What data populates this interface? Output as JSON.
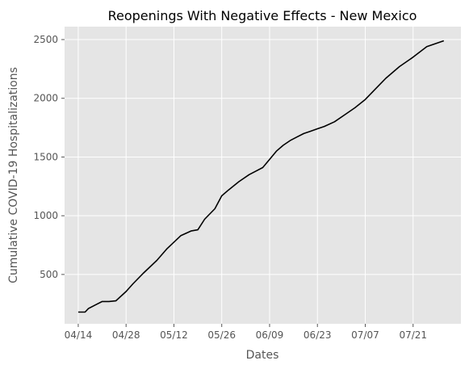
{
  "chart_data": {
    "type": "line",
    "title": "Reopenings With Negative Effects - New Mexico",
    "xlabel": "Dates",
    "ylabel": "Cumulative COVID-19 Hospitalizations",
    "grid": true,
    "background": "#E5E5E5",
    "grid_color": "#FFFFFF",
    "line_color": "#000000",
    "x_ticks": [
      "04/14",
      "04/28",
      "05/12",
      "05/26",
      "06/09",
      "06/23",
      "07/07",
      "07/21"
    ],
    "x_tick_dates": [
      "2020-04-14",
      "2020-04-28",
      "2020-05-12",
      "2020-05-26",
      "2020-06-09",
      "2020-06-23",
      "2020-07-07",
      "2020-07-21"
    ],
    "xlim": [
      "2020-04-10",
      "2020-08-04"
    ],
    "y_ticks": [
      500,
      1000,
      1500,
      2000,
      2500
    ],
    "ylim": [
      80,
      2610
    ],
    "series": [
      {
        "x": [
          "2020-04-14",
          "2020-04-16",
          "2020-04-17",
          "2020-04-19",
          "2020-04-21",
          "2020-04-23",
          "2020-04-25",
          "2020-04-28",
          "2020-04-30",
          "2020-05-03",
          "2020-05-07",
          "2020-05-10",
          "2020-05-14",
          "2020-05-17",
          "2020-05-19",
          "2020-05-21",
          "2020-05-24",
          "2020-05-26",
          "2020-05-28",
          "2020-05-31",
          "2020-06-03",
          "2020-06-05",
          "2020-06-07",
          "2020-06-09",
          "2020-06-11",
          "2020-06-13",
          "2020-06-15",
          "2020-06-17",
          "2020-06-19",
          "2020-06-21",
          "2020-06-23",
          "2020-06-25",
          "2020-06-28",
          "2020-07-01",
          "2020-07-04",
          "2020-07-07",
          "2020-07-10",
          "2020-07-13",
          "2020-07-17",
          "2020-07-21",
          "2020-07-25",
          "2020-07-30"
        ],
        "y": [
          180,
          180,
          210,
          240,
          270,
          270,
          275,
          355,
          420,
          510,
          620,
          720,
          830,
          870,
          880,
          970,
          1060,
          1170,
          1220,
          1290,
          1350,
          1380,
          1410,
          1480,
          1550,
          1600,
          1640,
          1670,
          1700,
          1720,
          1740,
          1760,
          1800,
          1860,
          1920,
          1990,
          2080,
          2170,
          2270,
          2350,
          2440,
          2490
        ]
      }
    ]
  }
}
